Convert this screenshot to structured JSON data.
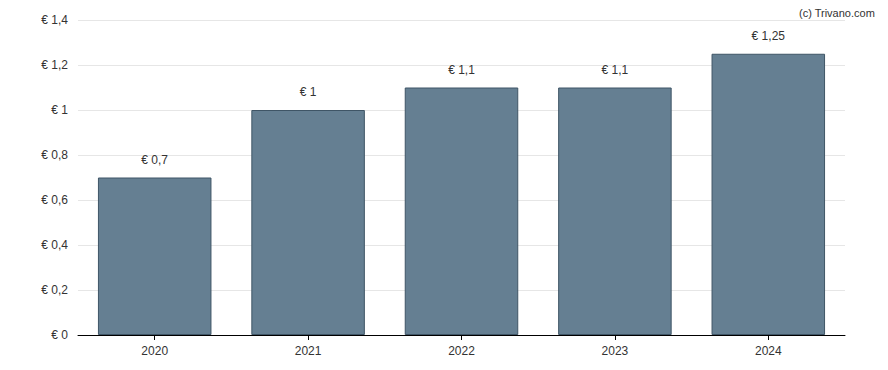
{
  "chart_data": {
    "type": "bar",
    "annotation": "(c) Trivano.com",
    "categories": [
      "2020",
      "2021",
      "2022",
      "2023",
      "2024"
    ],
    "values": [
      0.7,
      1,
      1.1,
      1.1,
      1.25
    ],
    "value_labels": [
      "€ 0,7",
      "€ 1",
      "€ 1,1",
      "€ 1,1",
      "€ 1,25"
    ],
    "data_labels": true,
    "color": "#657f92",
    "ylim": [
      0,
      1.4
    ],
    "yticks": [
      {
        "value": 0,
        "label": "€ 0"
      },
      {
        "value": 0.2,
        "label": "€ 0,2"
      },
      {
        "value": 0.4,
        "label": "€ 0,4"
      },
      {
        "value": 0.6,
        "label": "€ 0,6"
      },
      {
        "value": 0.8,
        "label": "€ 0,8"
      },
      {
        "value": 1,
        "label": "€ 1"
      },
      {
        "value": 1.2,
        "label": "€ 1,2"
      },
      {
        "value": 1.4,
        "label": "€ 1,4"
      }
    ],
    "grid": true
  }
}
